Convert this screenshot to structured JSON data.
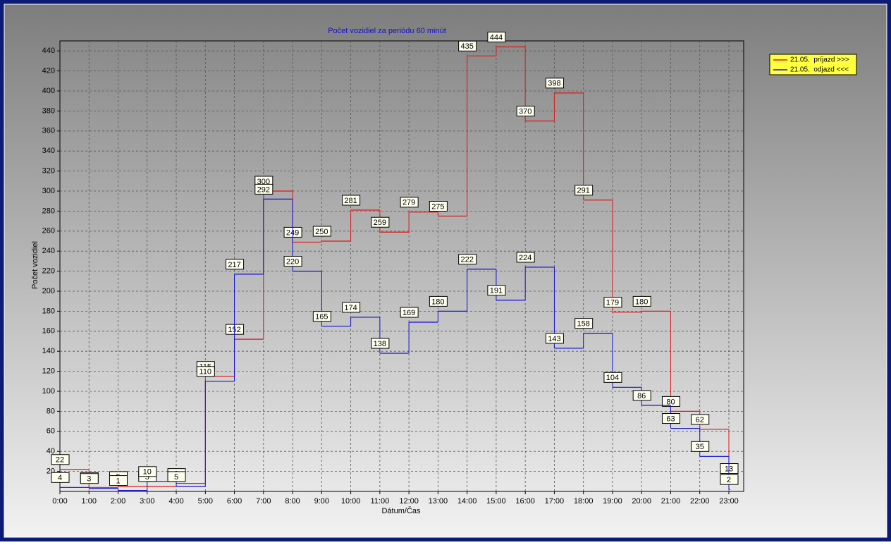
{
  "chart_data": {
    "type": "step",
    "title": "Počet vozidiel za periódu 60 minút",
    "x_label": "Dátum/Čas",
    "y_label": "Počet vozidiel",
    "categories": [
      "0:00",
      "1:00",
      "2:00",
      "3:00",
      "4:00",
      "5:00",
      "6:00",
      "7:00",
      "8:00",
      "9:00",
      "10:00",
      "11:00",
      "12:00",
      "13:00",
      "14:00",
      "15:00",
      "16:00",
      "17:00",
      "18:00",
      "19:00",
      "20:00",
      "21:00",
      "22:00",
      "23:00"
    ],
    "series": [
      {
        "name": "21.05.  príjazd >>>",
        "color": "#e01818",
        "values": [
          22,
          4,
          5,
          5,
          8,
          115,
          152,
          300,
          249,
          250,
          281,
          259,
          279,
          275,
          435,
          444,
          370,
          398,
          291,
          179,
          180,
          80,
          62,
          13
        ]
      },
      {
        "name": "21.05.  odjazd <<<",
        "color": "#1010d8",
        "values": [
          4,
          3,
          1,
          10,
          5,
          110,
          217,
          292,
          220,
          165,
          174,
          138,
          169,
          180,
          222,
          191,
          224,
          143,
          158,
          104,
          86,
          63,
          35,
          2
        ]
      }
    ],
    "ylim": [
      0,
      450
    ],
    "yticks": [
      20,
      40,
      60,
      80,
      100,
      120,
      140,
      160,
      180,
      200,
      220,
      240,
      260,
      280,
      300,
      320,
      340,
      360,
      380,
      400,
      420,
      440
    ],
    "grid": true
  }
}
